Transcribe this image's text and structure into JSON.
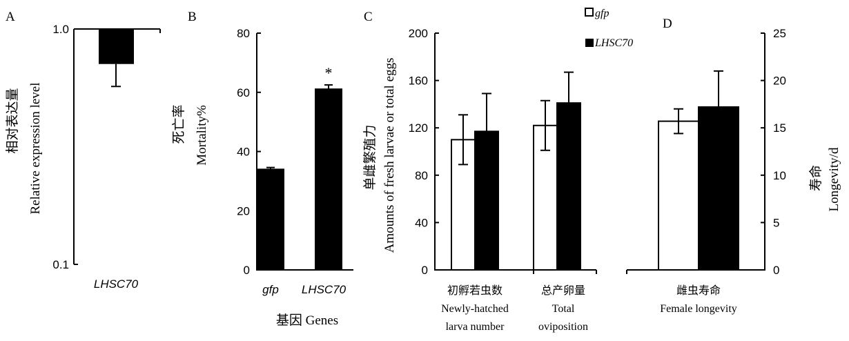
{
  "chart_data": [
    {
      "panel": "A",
      "type": "bar",
      "ylabel_cn": "相对表达量",
      "ylabel": "Relative expression level",
      "yscale": "log",
      "ylim": [
        0.1,
        1.0
      ],
      "yticks": [
        "0.1",
        "1.0"
      ],
      "categories": [
        "LHSC70"
      ],
      "values": [
        0.71
      ],
      "errors": [
        0.14
      ],
      "color": "#000000"
    },
    {
      "panel": "B",
      "type": "bar",
      "ylabel_cn": "死亡率",
      "ylabel": "Mortality%",
      "xlabel": "基因 Genes",
      "ylim": [
        0,
        80
      ],
      "yticks": [
        "0",
        "20",
        "40",
        "60",
        "80"
      ],
      "categories": [
        "gfp",
        "LHSC70"
      ],
      "values": [
        34.2,
        61.3
      ],
      "errors": [
        0.4,
        1.2
      ],
      "annotation": "*",
      "color": "#000000"
    },
    {
      "panel": "C",
      "type": "bar",
      "ylabel_cn": "单雌繁殖力",
      "ylabel": "Amounts of fresh larvae or total eggs",
      "ylim": [
        0,
        200
      ],
      "yticks": [
        "0",
        "40",
        "80",
        "120",
        "160",
        "200"
      ],
      "categories": [
        {
          "cn": "初孵若虫数",
          "en1": "Newly-hatched",
          "en2": "larva number"
        },
        {
          "cn": "总产卵量",
          "en1": "Total",
          "en2": "oviposition"
        }
      ],
      "series": [
        {
          "name": "gfp",
          "values": [
            110,
            122
          ],
          "errors": [
            21,
            21
          ],
          "color": "#ffffff"
        },
        {
          "name": "LHSC70",
          "values": [
            117,
            141
          ],
          "errors": [
            32,
            26
          ],
          "color": "#000000"
        }
      ]
    },
    {
      "panel": "D",
      "type": "bar",
      "ylabel_cn": "寿命",
      "ylabel": "Longevity/d",
      "ylim": [
        0,
        25
      ],
      "yticks": [
        "0",
        "5",
        "10",
        "15",
        "20",
        "25"
      ],
      "categories": [
        {
          "cn": "雌虫寿命",
          "en1": "Female longevity"
        }
      ],
      "series": [
        {
          "name": "gfp",
          "values": [
            15.7
          ],
          "errors": [
            1.3
          ],
          "color": "#ffffff"
        },
        {
          "name": "LHSC70",
          "values": [
            17.2
          ],
          "errors": [
            3.8
          ],
          "color": "#000000"
        }
      ]
    }
  ],
  "legend": [
    {
      "label": "gfp",
      "color": "#ffffff"
    },
    {
      "label": "LHSC70",
      "color": "#000000"
    }
  ]
}
